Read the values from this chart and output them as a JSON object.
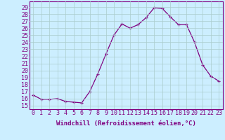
{
  "x": [
    0,
    1,
    2,
    3,
    4,
    5,
    6,
    7,
    8,
    9,
    10,
    11,
    12,
    13,
    14,
    15,
    16,
    17,
    18,
    19,
    20,
    21,
    22,
    23
  ],
  "y": [
    16.5,
    15.9,
    15.9,
    16.0,
    15.6,
    15.5,
    15.4,
    17.0,
    19.5,
    22.3,
    25.0,
    26.6,
    26.0,
    26.5,
    27.5,
    28.9,
    28.8,
    27.6,
    26.5,
    26.5,
    24.0,
    20.8,
    19.2,
    18.5
  ],
  "line_color": "#800080",
  "marker": "+",
  "bg_color": "#cceeff",
  "grid_color": "#aacccc",
  "xlabel": "Windchill (Refroidissement éolien,°C)",
  "ylabel_ticks": [
    15,
    16,
    17,
    18,
    19,
    20,
    21,
    22,
    23,
    24,
    25,
    26,
    27,
    28,
    29
  ],
  "ylim": [
    14.5,
    29.8
  ],
  "xlim": [
    -0.5,
    23.5
  ],
  "xlabel_fontsize": 6.5,
  "tick_fontsize": 6.0,
  "line_color_hex": "#800080"
}
